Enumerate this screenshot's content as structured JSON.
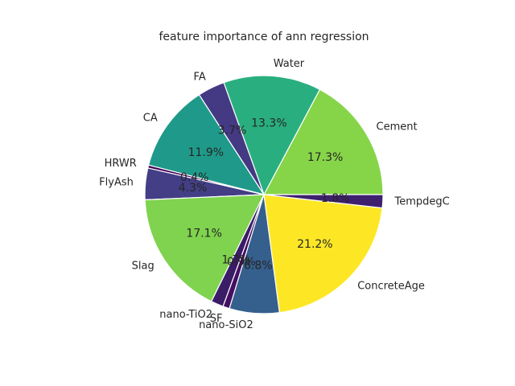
{
  "chart_data": {
    "type": "pie",
    "title": "feature importance of ann regression",
    "start_angle_deg": 0,
    "direction": "counterclockwise",
    "slices": [
      {
        "label": "Cement",
        "value": 17.3,
        "pct_label": "17.3%",
        "color": "#86d549"
      },
      {
        "label": "Water",
        "value": 13.3,
        "pct_label": "13.3%",
        "color": "#29af7f"
      },
      {
        "label": "FA",
        "value": 3.7,
        "pct_label": "3.7%",
        "color": "#443983"
      },
      {
        "label": "CA",
        "value": 11.9,
        "pct_label": "11.9%",
        "color": "#1f9a8a"
      },
      {
        "label": "HRWR",
        "value": 0.4,
        "pct_label": "0.4%",
        "color": "#440154"
      },
      {
        "label": "FlyAsh",
        "value": 4.3,
        "pct_label": "4.3%",
        "color": "#433e85"
      },
      {
        "label": "Slag",
        "value": 17.1,
        "pct_label": "17.1%",
        "color": "#7fd34e"
      },
      {
        "label": "nano-TiO2",
        "value": 1.7,
        "pct_label": "1.7%",
        "color": "#3b1c67"
      },
      {
        "label": "SF",
        "value": 0.9,
        "pct_label": "0.9%",
        "color": "#450f62"
      },
      {
        "label": "nano-SiO2",
        "value": 6.8,
        "pct_label": "6.8%",
        "color": "#355f8d"
      },
      {
        "label": "ConcreteAge",
        "value": 21.2,
        "pct_label": "21.2%",
        "color": "#fde725"
      },
      {
        "label": "TempdegC",
        "value": 1.8,
        "pct_label": "1.8%",
        "color": "#3e206f"
      }
    ]
  }
}
